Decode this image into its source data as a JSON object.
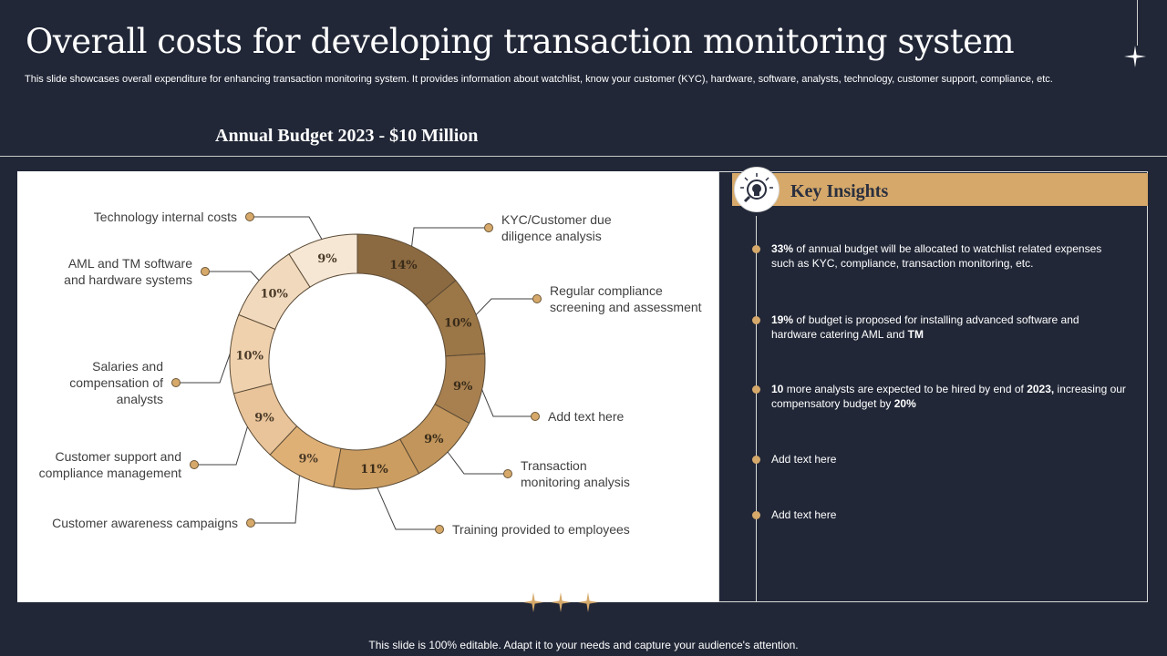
{
  "title": "Overall costs for developing transaction monitoring system",
  "subtitle": "This slide showcases overall expenditure for enhancing transaction monitoring system. It provides information about watchlist, know your customer (KYC), hardware, software, analysts, technology, customer support, compliance, etc.",
  "budget_label": "Annual Budget 2023 - $10 Million",
  "footer": "This slide is 100% editable. Adapt it to your needs and capture your audience's attention.",
  "chart_data": {
    "type": "pie",
    "segments": [
      {
        "label": "KYC/Customer due\ndiligence analysis",
        "value": 14,
        "text": "14%",
        "color": "#8c6a41"
      },
      {
        "label": "Regular compliance\nscreening and assessment",
        "value": 10,
        "text": "10%",
        "color": "#9b7647"
      },
      {
        "label": "Add text here",
        "value": 9,
        "text": "9%",
        "color": "#a88050"
      },
      {
        "label": "Transaction\nmonitoring analysis",
        "value": 9,
        "text": "9%",
        "color": "#c1955b"
      },
      {
        "label": "Training provided to employees",
        "value": 11,
        "text": "11%",
        "color": "#cc9d61"
      },
      {
        "label": "Customer awareness campaigns",
        "value": 9,
        "text": "9%",
        "color": "#dfb076"
      },
      {
        "label": "Customer support and\ncompliance management",
        "value": 9,
        "text": "9%",
        "color": "#e9c49a"
      },
      {
        "label": "Salaries and\ncompensation of\nanalysts",
        "value": 10,
        "text": "10%",
        "color": "#efd1ae"
      },
      {
        "label": "AML and TM software\nand hardware systems",
        "value": 10,
        "text": "10%",
        "color": "#f1d9bd"
      },
      {
        "label": "Technology internal costs",
        "value": 9,
        "text": "9%",
        "color": "#f6e6d4"
      }
    ]
  },
  "insights": {
    "title": "Key Insights",
    "items": [
      {
        "parts": [
          {
            "b": true,
            "t": "33%"
          },
          {
            "b": false,
            "t": " of annual budget will be allocated to watchlist related expenses such as KYC, compliance, transaction monitoring, etc."
          }
        ]
      },
      {
        "parts": [
          {
            "b": true,
            "t": "19%"
          },
          {
            "b": false,
            "t": " of budget is proposed for installing advanced software and hardware catering AML and "
          },
          {
            "b": true,
            "t": "TM"
          }
        ]
      },
      {
        "parts": [
          {
            "b": true,
            "t": "10"
          },
          {
            "b": false,
            "t": " more analysts are expected to be hired by end of "
          },
          {
            "b": true,
            "t": "2023,"
          },
          {
            "b": false,
            "t": " increasing our compensatory budget by "
          },
          {
            "b": true,
            "t": "20%"
          }
        ]
      },
      {
        "parts": [
          {
            "b": false,
            "t": "Add text here"
          }
        ]
      },
      {
        "parts": [
          {
            "b": false,
            "t": "Add text here"
          }
        ]
      }
    ]
  }
}
